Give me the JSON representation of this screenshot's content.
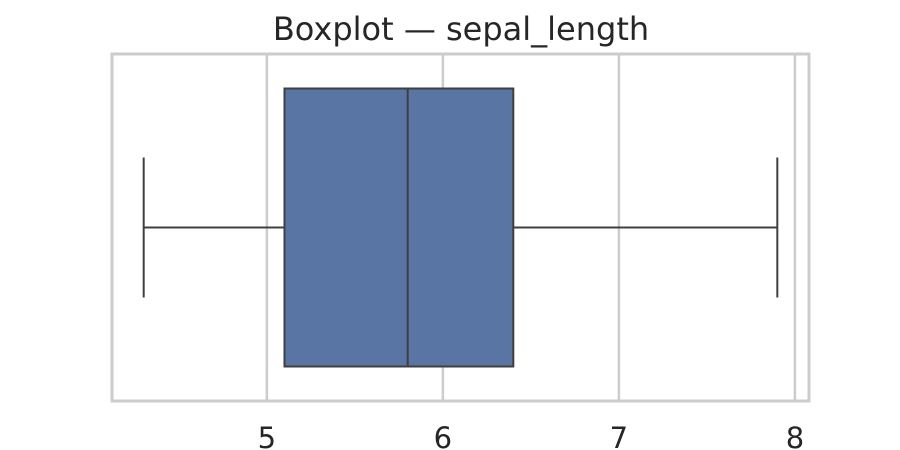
{
  "chart_data": {
    "type": "boxplot",
    "title": "Boxplot — sepal_length",
    "xlabel": "",
    "ylabel": "",
    "orientation": "horizontal",
    "xlim": [
      4.12,
      8.08
    ],
    "xticks": [
      5,
      6,
      7,
      8
    ],
    "grid": true,
    "box": {
      "min": 4.3,
      "q1": 5.1,
      "median": 5.8,
      "q3": 6.4,
      "max": 7.9
    },
    "colors": {
      "box_fill": "#5875a4",
      "line": "#3f3f3f",
      "grid": "#cccccc",
      "frame": "#cccccc"
    }
  }
}
